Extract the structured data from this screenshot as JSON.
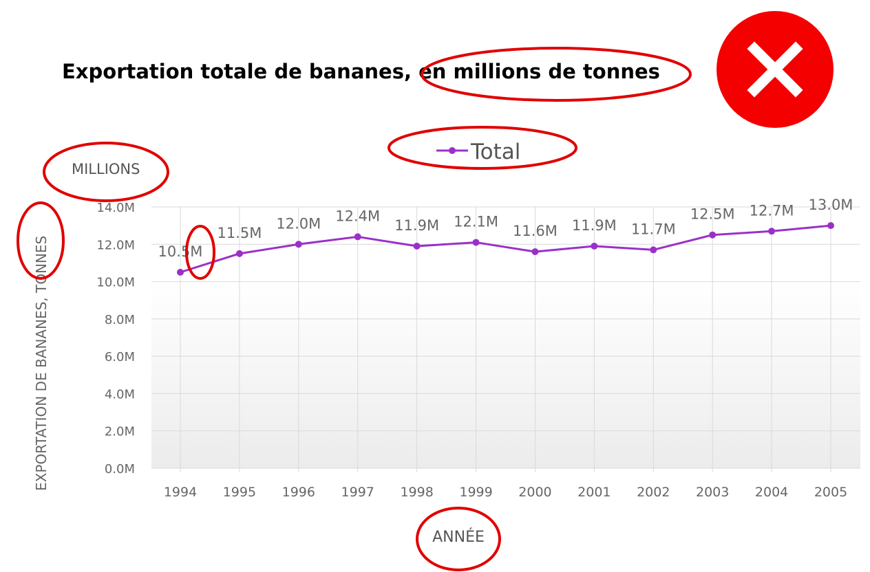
{
  "chart_data": {
    "type": "line",
    "title": "Exportation totale de bananes, en millions de tonnes",
    "unit_label": "MILLIONS",
    "ylabel": "EXPORTATION DE BANANES, TONNES",
    "xlabel": "ANNÉE",
    "legend": {
      "position": "top-center"
    },
    "ylim": [
      0,
      14
    ],
    "yticks": [
      0,
      2,
      4,
      6,
      8,
      10,
      12,
      14
    ],
    "ytick_labels": [
      "0.0M",
      "2.0M",
      "4.0M",
      "6.0M",
      "8.0M",
      "10.0M",
      "12.0M",
      "14.0M"
    ],
    "grid": true,
    "categories": [
      "1994",
      "1995",
      "1996",
      "1997",
      "1998",
      "1999",
      "2000",
      "2001",
      "2002",
      "2003",
      "2004",
      "2005"
    ],
    "series": [
      {
        "name": "Total",
        "color": "#9b30c8",
        "values": [
          10.5,
          11.5,
          12.0,
          12.4,
          11.9,
          12.1,
          11.6,
          11.9,
          11.7,
          12.5,
          12.7,
          13.0
        ],
        "labels": [
          "10.5M",
          "11.5M",
          "12.0M",
          "12.4M",
          "11.9M",
          "12.1M",
          "11.6M",
          "11.9M",
          "11.7M",
          "12.5M",
          "12.7M",
          "13.0M"
        ]
      }
    ]
  },
  "status_icon": {
    "name": "close-icon",
    "color": "#f40000"
  },
  "annotation_color": "#e00000"
}
